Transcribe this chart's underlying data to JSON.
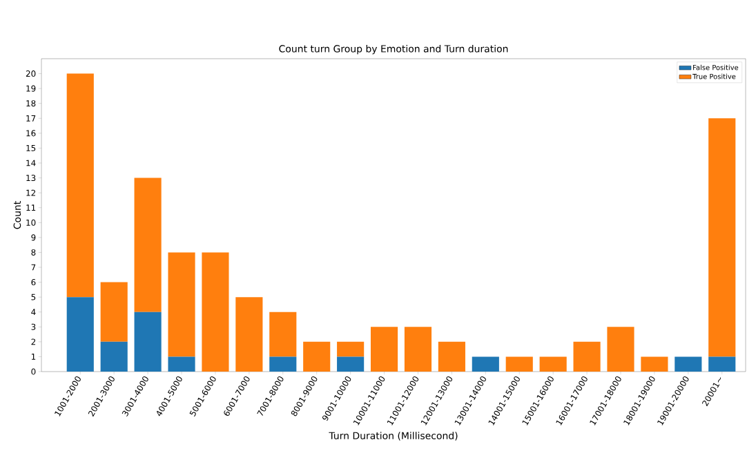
{
  "chart_data": {
    "type": "bar",
    "stacked": true,
    "title": "Count turn Group by Emotion and Turn duration",
    "xlabel": "Turn Duration (Millisecond)",
    "ylabel": "Count",
    "categories": [
      "1001-2000",
      "2001-3000",
      "3001-4000",
      "4001-5000",
      "5001-6000",
      "6001-7000",
      "7001-8000",
      "8001-9000",
      "9001-10000",
      "10001-11000",
      "11001-12000",
      "12001-13000",
      "13001-14000",
      "14001-15000",
      "15001-16000",
      "16001-17000",
      "17001-18000",
      "18001-19000",
      "19001-20000",
      "20001~"
    ],
    "series": [
      {
        "name": "False Positive",
        "color": "#1f77b4",
        "values": [
          5,
          2,
          4,
          1,
          0,
          0,
          1,
          0,
          1,
          0,
          0,
          0,
          1,
          0,
          0,
          0,
          0,
          0,
          1,
          1
        ]
      },
      {
        "name": "True Positive",
        "color": "#ff7f0e",
        "values": [
          15,
          4,
          9,
          7,
          8,
          5,
          3,
          2,
          1,
          3,
          3,
          2,
          0,
          1,
          1,
          2,
          3,
          1,
          0,
          16
        ]
      }
    ],
    "ylim": [
      0,
      21
    ],
    "yticks": [
      0,
      1,
      2,
      3,
      4,
      5,
      6,
      7,
      8,
      9,
      10,
      11,
      12,
      13,
      14,
      15,
      16,
      17,
      18,
      19,
      20
    ],
    "grid": false,
    "legend": "top right"
  }
}
